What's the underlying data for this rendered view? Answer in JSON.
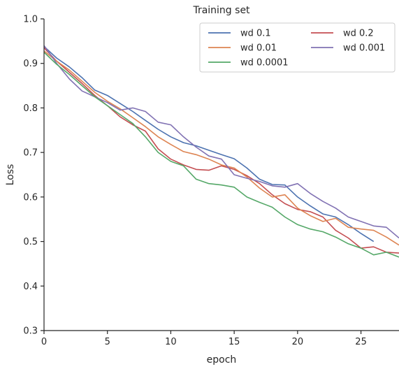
{
  "chart_data": {
    "type": "line",
    "title": "Training set",
    "xlabel": "epoch",
    "ylabel": "Loss",
    "xlim": [
      0,
      28
    ],
    "ylim": [
      0.3,
      1.0
    ],
    "xticks": [
      0,
      5,
      10,
      15,
      20,
      25
    ],
    "yticks": [
      0.3,
      0.4,
      0.5,
      0.6,
      0.7,
      0.8,
      0.9,
      1.0
    ],
    "xtick_labels": [
      "0",
      "5",
      "10",
      "15",
      "20",
      "25"
    ],
    "ytick_labels": [
      "0.3",
      "0.4",
      "0.5",
      "0.6",
      "0.7",
      "0.8",
      "0.9",
      "1.0"
    ],
    "grid": false,
    "legend_position": "top-right",
    "series": [
      {
        "name": "wd 0.1",
        "color": "#4c72b0",
        "x": [
          0,
          1,
          2,
          3,
          4,
          5,
          6,
          7,
          8,
          9,
          10,
          11,
          12,
          13,
          14,
          15,
          16,
          17,
          18,
          19,
          20,
          21,
          22,
          23,
          24,
          25,
          26
        ],
        "y": [
          0.938,
          0.912,
          0.892,
          0.868,
          0.84,
          0.828,
          0.81,
          0.792,
          0.772,
          0.752,
          0.735,
          0.722,
          0.715,
          0.705,
          0.695,
          0.686,
          0.665,
          0.64,
          0.628,
          0.627,
          0.6,
          0.58,
          0.562,
          0.555,
          0.538,
          0.518,
          0.5
        ]
      },
      {
        "name": "wd 0.2",
        "color": "#c44e52",
        "x": [
          0,
          1,
          2,
          3,
          4,
          5,
          6,
          7,
          8,
          9,
          10,
          11,
          12,
          13,
          14,
          15,
          16,
          17,
          18,
          19,
          20,
          21,
          22,
          23,
          24,
          25,
          26,
          27,
          28
        ],
        "y": [
          0.935,
          0.905,
          0.88,
          0.855,
          0.828,
          0.805,
          0.78,
          0.762,
          0.748,
          0.708,
          0.685,
          0.672,
          0.662,
          0.66,
          0.67,
          0.662,
          0.648,
          0.63,
          0.605,
          0.585,
          0.572,
          0.567,
          0.555,
          0.525,
          0.508,
          0.485,
          0.488,
          0.476,
          0.474
        ]
      },
      {
        "name": "wd 0.01",
        "color": "#dd8452",
        "x": [
          0,
          1,
          2,
          3,
          4,
          5,
          6,
          7,
          8,
          9,
          10,
          11,
          12,
          13,
          14,
          15,
          16,
          17,
          18,
          19,
          20,
          21,
          22,
          23,
          24,
          25,
          26,
          27,
          28
        ],
        "y": [
          0.928,
          0.905,
          0.885,
          0.86,
          0.835,
          0.815,
          0.798,
          0.778,
          0.758,
          0.735,
          0.718,
          0.702,
          0.695,
          0.685,
          0.672,
          0.665,
          0.645,
          0.62,
          0.6,
          0.605,
          0.575,
          0.558,
          0.545,
          0.552,
          0.532,
          0.528,
          0.525,
          0.51,
          0.492
        ]
      },
      {
        "name": "wd 0.001",
        "color": "#8172b3",
        "x": [
          0,
          1,
          2,
          3,
          4,
          5,
          6,
          7,
          8,
          9,
          10,
          11,
          12,
          13,
          14,
          15,
          16,
          17,
          18,
          19,
          20,
          21,
          22,
          23,
          24,
          25,
          26,
          27,
          28
        ],
        "y": [
          0.94,
          0.9,
          0.865,
          0.838,
          0.825,
          0.812,
          0.795,
          0.8,
          0.792,
          0.768,
          0.762,
          0.735,
          0.712,
          0.692,
          0.685,
          0.65,
          0.642,
          0.635,
          0.625,
          0.622,
          0.63,
          0.608,
          0.59,
          0.575,
          0.555,
          0.545,
          0.535,
          0.532,
          0.508
        ]
      },
      {
        "name": "wd 0.0001",
        "color": "#55a868",
        "x": [
          0,
          1,
          2,
          3,
          4,
          5,
          6,
          7,
          8,
          9,
          10,
          11,
          12,
          13,
          14,
          15,
          16,
          17,
          18,
          19,
          20,
          21,
          22,
          23,
          24,
          25,
          26,
          27,
          28
        ],
        "y": [
          0.925,
          0.898,
          0.875,
          0.85,
          0.825,
          0.805,
          0.785,
          0.765,
          0.735,
          0.7,
          0.68,
          0.67,
          0.64,
          0.63,
          0.627,
          0.622,
          0.6,
          0.588,
          0.577,
          0.555,
          0.538,
          0.528,
          0.522,
          0.51,
          0.495,
          0.485,
          0.47,
          0.476,
          0.465
        ]
      }
    ],
    "legend_order": [
      "wd 0.1",
      "wd 0.2",
      "wd 0.01",
      "wd 0.001",
      "wd 0.0001"
    ]
  }
}
